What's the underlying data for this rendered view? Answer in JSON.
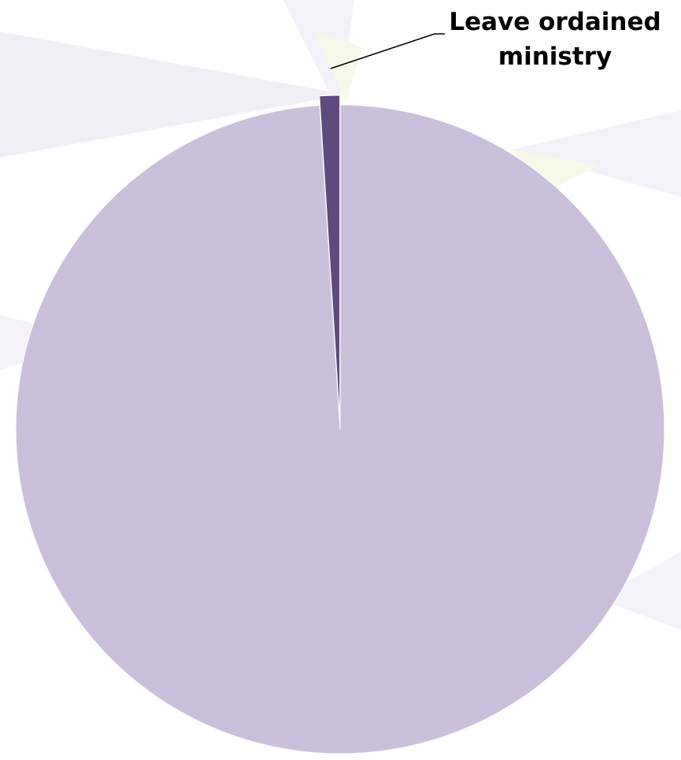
{
  "chart_data": {
    "type": "pie",
    "categories": [
      null,
      "Leave ordained ministry"
    ],
    "values": [
      99,
      1
    ],
    "colors": [
      "#cbc0dc",
      "#5e4a7e"
    ]
  }
}
